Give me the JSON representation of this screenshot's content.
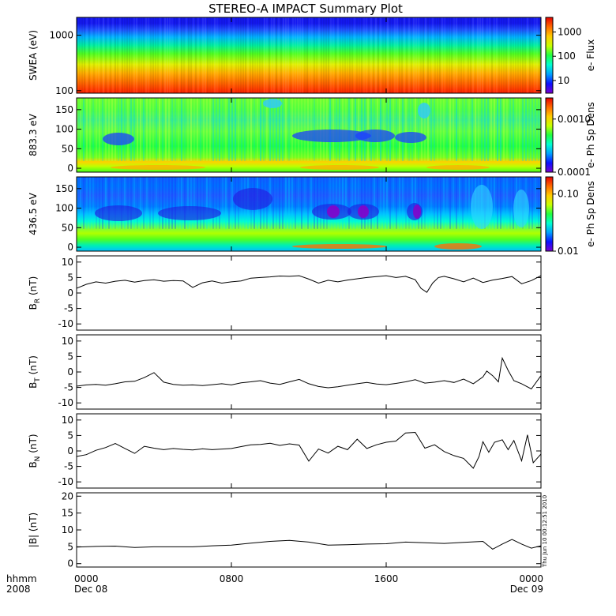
{
  "title": "STEREO-A IMPACT Summary Plot",
  "timestamp": "Thu Jun 10 00:12:51 2010",
  "x_axis": {
    "row_label": "hhmm",
    "year_label": "2008",
    "ticks": [
      {
        "hhmm": "0000",
        "hour": 0,
        "date": "Dec 08"
      },
      {
        "hhmm": "0800",
        "hour": 8,
        "date": ""
      },
      {
        "hhmm": "1600",
        "hour": 16,
        "date": ""
      },
      {
        "hhmm": "0000",
        "hour": 24,
        "date": "Dec 09"
      }
    ]
  },
  "colorbar_colors": [
    "#7a00cf",
    "#0a10ff",
    "#00a0ff",
    "#00ffd0",
    "#20ff40",
    "#c8ff00",
    "#ffcc00",
    "#ff6a00",
    "#e60000"
  ],
  "chart_data": [
    {
      "type": "heatmap",
      "name": "swea",
      "ylabel": "SWEA (eV)",
      "yscale": "log",
      "ylim": [
        90,
        2100
      ],
      "yticks": [
        {
          "v": 100,
          "t": "100"
        },
        {
          "v": 1000,
          "t": "1000"
        }
      ],
      "colorbar_label": "e- Flux",
      "colorbar_scale": "log",
      "colorbar_range": [
        3,
        4000
      ],
      "colorbar_ticks": [
        {
          "v": 10,
          "t": "10"
        },
        {
          "v": 100,
          "t": "100"
        },
        {
          "v": 1000,
          "t": "1000"
        }
      ]
    },
    {
      "type": "heatmap",
      "name": "pad_883",
      "ylabel": "883.3 eV",
      "ylim": [
        -10,
        180
      ],
      "yticks": [
        {
          "v": 0,
          "t": "0"
        },
        {
          "v": 50,
          "t": "50"
        },
        {
          "v": 100,
          "t": "100"
        },
        {
          "v": 150,
          "t": "150"
        }
      ],
      "colorbar_label": "e- Ph Sp Dens",
      "colorbar_scale": "log",
      "colorbar_range": [
        0.0001,
        0.0025
      ],
      "colorbar_ticks": [
        {
          "v": 0.0001,
          "t": "0.0001"
        },
        {
          "v": 0.001,
          "t": "0.0010"
        }
      ]
    },
    {
      "type": "heatmap",
      "name": "pad_436",
      "ylabel": "436.5 eV",
      "ylim": [
        -10,
        180
      ],
      "yticks": [
        {
          "v": 0,
          "t": "0"
        },
        {
          "v": 50,
          "t": "50"
        },
        {
          "v": 100,
          "t": "100"
        },
        {
          "v": 150,
          "t": "150"
        }
      ],
      "colorbar_label": "e- Ph Sp Dens",
      "colorbar_scale": "log",
      "colorbar_range": [
        0.01,
        0.2
      ],
      "colorbar_ticks": [
        {
          "v": 0.01,
          "t": "0.01"
        },
        {
          "v": 0.1,
          "t": "0.10"
        }
      ]
    },
    {
      "type": "line",
      "name": "br",
      "ylabel": "B",
      "ylabel_sub": "R",
      "ylabel_unit": "(nT)",
      "ylim": [
        -12,
        12
      ],
      "yticks": [
        -10,
        -5,
        0,
        5,
        10
      ],
      "x": [
        0,
        0.5,
        1,
        1.5,
        2,
        2.5,
        3,
        3.5,
        4,
        4.5,
        5,
        5.5,
        6,
        6.5,
        7,
        7.5,
        8,
        8.5,
        9,
        9.5,
        10,
        10.5,
        11,
        11.5,
        12,
        12.5,
        13,
        13.5,
        14,
        14.5,
        15,
        15.5,
        16,
        16.5,
        17,
        17.5,
        17.8,
        18.1,
        18.4,
        18.7,
        19,
        19.5,
        20,
        20.5,
        21,
        21.5,
        22,
        22.5,
        23,
        23.5,
        24
      ],
      "y": [
        1.5,
        2.8,
        3.6,
        3.2,
        3.8,
        4.1,
        3.5,
        4.0,
        4.3,
        3.8,
        4.0,
        3.9,
        1.8,
        3.3,
        3.9,
        3.2,
        3.6,
        3.9,
        4.8,
        5.0,
        5.2,
        5.5,
        5.4,
        5.6,
        4.5,
        3.2,
        4.1,
        3.6,
        4.2,
        4.6,
        5.0,
        5.3,
        5.6,
        5.0,
        5.4,
        4.3,
        1.5,
        0.2,
        3.2,
        5.0,
        5.4,
        4.6,
        3.6,
        4.8,
        3.4,
        4.2,
        4.7,
        5.3,
        3.0,
        4.0,
        5.6
      ]
    },
    {
      "type": "line",
      "name": "bt",
      "ylabel": "B",
      "ylabel_sub": "T",
      "ylabel_unit": "(nT)",
      "ylim": [
        -12,
        12
      ],
      "yticks": [
        -10,
        -5,
        0,
        5,
        10
      ],
      "x": [
        0,
        0.5,
        1,
        1.5,
        2,
        2.5,
        3,
        3.5,
        4,
        4.5,
        5,
        5.5,
        6,
        6.5,
        7,
        7.5,
        8,
        8.5,
        9,
        9.5,
        10,
        10.5,
        11,
        11.5,
        12,
        12.5,
        13,
        13.5,
        14,
        14.5,
        15,
        15.5,
        16,
        16.5,
        17,
        17.5,
        18,
        18.5,
        19,
        19.5,
        20,
        20.5,
        21,
        21.2,
        21.5,
        21.8,
        22,
        22.3,
        22.6,
        23,
        23.5,
        24
      ],
      "y": [
        -4.6,
        -4.2,
        -4.0,
        -4.3,
        -3.8,
        -3.2,
        -3.0,
        -1.8,
        -0.2,
        -3.3,
        -4.0,
        -4.3,
        -4.2,
        -4.4,
        -4.1,
        -3.8,
        -4.2,
        -3.5,
        -3.2,
        -2.8,
        -3.6,
        -4.0,
        -3.2,
        -2.4,
        -3.8,
        -4.7,
        -5.1,
        -4.8,
        -4.3,
        -3.8,
        -3.4,
        -3.9,
        -4.1,
        -3.7,
        -3.2,
        -2.5,
        -3.6,
        -3.3,
        -2.8,
        -3.4,
        -2.3,
        -3.8,
        -1.6,
        0.3,
        -1.2,
        -3.2,
        4.5,
        0.5,
        -2.8,
        -3.8,
        -5.5,
        -1.2
      ]
    },
    {
      "type": "line",
      "name": "bn",
      "ylabel": "B",
      "ylabel_sub": "N",
      "ylabel_unit": "(nT)",
      "ylim": [
        -12,
        12
      ],
      "yticks": [
        -10,
        -5,
        0,
        5,
        10
      ],
      "x": [
        0,
        0.5,
        1,
        1.5,
        2,
        2.5,
        3,
        3.5,
        4,
        4.5,
        5,
        5.5,
        6,
        6.5,
        7,
        7.5,
        8,
        8.5,
        9,
        9.5,
        10,
        10.5,
        11,
        11.5,
        12,
        12.5,
        13,
        13.5,
        14,
        14.5,
        15,
        15.5,
        16,
        16.5,
        17,
        17.5,
        18,
        18.5,
        19,
        19.5,
        20,
        20.5,
        20.8,
        21,
        21.3,
        21.6,
        22,
        22.3,
        22.6,
        23,
        23.3,
        23.6,
        24
      ],
      "y": [
        -1.8,
        -1.2,
        0.2,
        1.1,
        2.4,
        0.8,
        -0.8,
        1.5,
        0.9,
        0.4,
        0.8,
        0.5,
        0.3,
        0.7,
        0.4,
        0.6,
        0.8,
        1.4,
        2.0,
        2.1,
        2.5,
        1.8,
        2.3,
        1.9,
        -3.3,
        0.6,
        -0.7,
        1.5,
        0.4,
        3.8,
        0.8,
        2.0,
        2.8,
        3.2,
        5.8,
        6.0,
        0.9,
        2.0,
        -0.2,
        -1.5,
        -2.4,
        -5.6,
        -1.8,
        3.0,
        -0.4,
        2.8,
        3.6,
        0.4,
        3.4,
        -3.2,
        5.2,
        -3.8,
        -1.0
      ]
    },
    {
      "type": "line",
      "name": "bmag",
      "ylabel": "|B| (nT)",
      "ylim": [
        -1,
        21
      ],
      "yticks": [
        0,
        5,
        10,
        15,
        20
      ],
      "x": [
        0,
        1,
        2,
        3,
        4,
        5,
        6,
        7,
        8,
        9,
        10,
        11,
        12,
        13,
        14,
        15,
        16,
        17,
        18,
        19,
        20,
        21,
        21.5,
        22,
        22.5,
        23,
        23.5,
        24
      ],
      "y": [
        4.9,
        5.1,
        5.2,
        4.8,
        5.0,
        5.0,
        5.0,
        5.3,
        5.5,
        6.1,
        6.6,
        6.9,
        6.4,
        5.5,
        5.6,
        5.8,
        5.9,
        6.4,
        6.2,
        6.0,
        6.3,
        6.6,
        4.3,
        5.8,
        7.2,
        5.8,
        4.6,
        5.3
      ]
    }
  ]
}
